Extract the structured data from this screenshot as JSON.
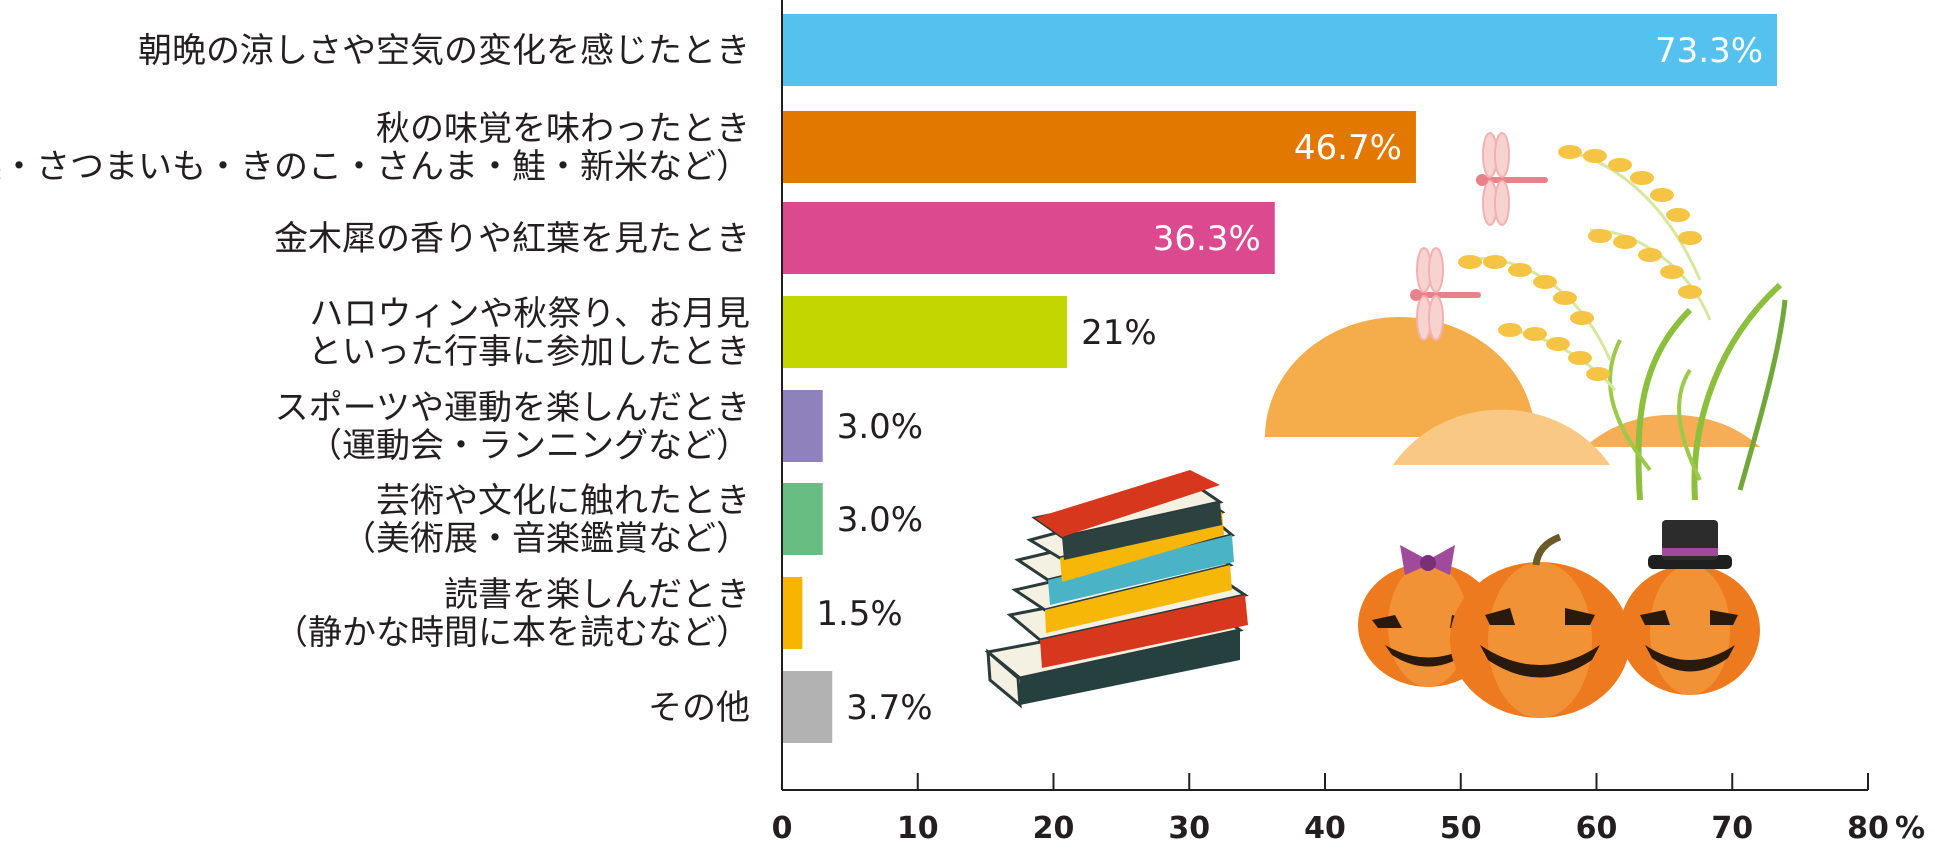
{
  "chart_data": {
    "type": "bar",
    "orientation": "horizontal",
    "categories": [
      [
        "朝晩の涼しさや空気の変化を感じたとき"
      ],
      [
        "秋の味覚を味わったとき",
        "（栗・さつまいも・きのこ・さんま・鮭・新米など）"
      ],
      [
        "金木犀の香りや紅葉を見たとき"
      ],
      [
        "ハロウィンや秋祭り、お月見",
        "といった行事に参加したとき"
      ],
      [
        "スポーツや運動を楽しんだとき",
        "（運動会・ランニングなど）"
      ],
      [
        "芸術や文化に触れたとき",
        "（美術展・音楽鑑賞など）"
      ],
      [
        "読書を楽しんだとき",
        "（静かな時間に本を読むなど）"
      ],
      [
        "その他"
      ]
    ],
    "values": [
      73.3,
      46.7,
      36.3,
      21,
      3.0,
      3.0,
      1.5,
      3.7
    ],
    "data_labels": [
      "73.3%",
      "46.7%",
      "36.3%",
      "21%",
      "3.0%",
      "3.0%",
      "1.5%",
      "3.7%"
    ],
    "colors": [
      "#55c1ef",
      "#e27800",
      "#db4a8e",
      "#c3d600",
      "#8f82bc",
      "#67bd82",
      "#f8b500",
      "#b2b2b2"
    ],
    "label_inside": [
      true,
      true,
      true,
      false,
      false,
      false,
      false,
      false
    ],
    "xlim": [
      0,
      80
    ],
    "xticks": [
      0,
      10,
      20,
      30,
      40,
      50,
      60,
      70,
      80
    ],
    "xunit": "%",
    "grid": false,
    "decorations": [
      "dragonfly-icon",
      "rice-plant-icon",
      "hill-shape",
      "book-stack-icon",
      "jack-o-lantern-icon"
    ]
  }
}
